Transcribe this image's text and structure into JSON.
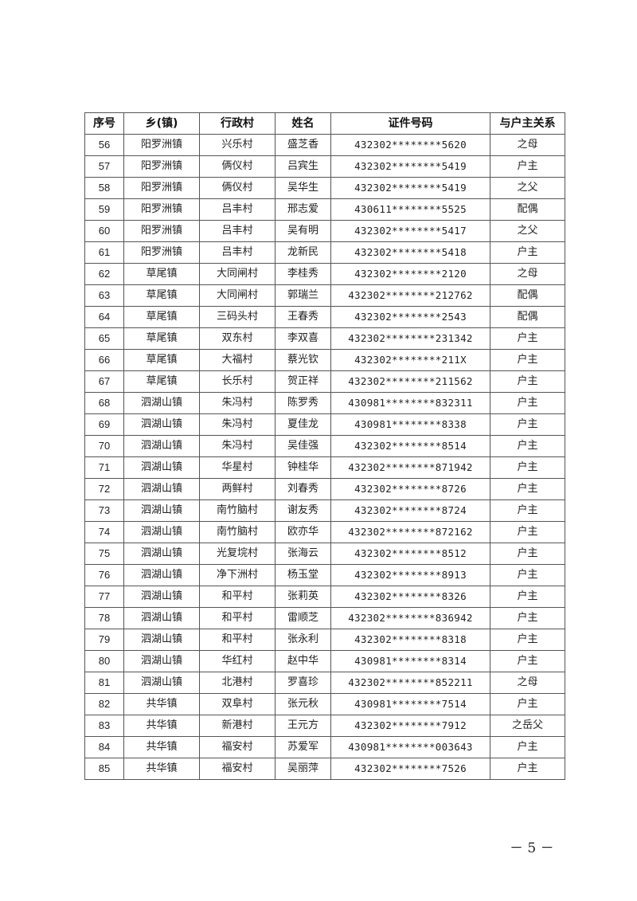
{
  "table": {
    "headers": [
      "序号",
      "乡(镇)",
      "行政村",
      "姓名",
      "证件号码",
      "与户主关系"
    ],
    "rows": [
      [
        "56",
        "阳罗洲镇",
        "兴乐村",
        "盛芝香",
        "432302********5620",
        "之母"
      ],
      [
        "57",
        "阳罗洲镇",
        "俩仪村",
        "吕宾生",
        "432302********5419",
        "户主"
      ],
      [
        "58",
        "阳罗洲镇",
        "俩仪村",
        "吴华生",
        "432302********5419",
        "之父"
      ],
      [
        "59",
        "阳罗洲镇",
        "吕丰村",
        "邢志爱",
        "430611********5525",
        "配偶"
      ],
      [
        "60",
        "阳罗洲镇",
        "吕丰村",
        "吴有明",
        "432302********5417",
        "之父"
      ],
      [
        "61",
        "阳罗洲镇",
        "吕丰村",
        "龙新民",
        "432302********5418",
        "户主"
      ],
      [
        "62",
        "草尾镇",
        "大同闸村",
        "李桂秀",
        "432302********2120",
        "之母"
      ],
      [
        "63",
        "草尾镇",
        "大同闸村",
        "郭瑞兰",
        "432302********212762",
        "配偶"
      ],
      [
        "64",
        "草尾镇",
        "三码头村",
        "王春秀",
        "432302********2543",
        "配偶"
      ],
      [
        "65",
        "草尾镇",
        "双东村",
        "李双喜",
        "432302********231342",
        "户主"
      ],
      [
        "66",
        "草尾镇",
        "大福村",
        "蔡光钦",
        "432302********211X",
        "户主"
      ],
      [
        "67",
        "草尾镇",
        "长乐村",
        "贺正祥",
        "432302********211562",
        "户主"
      ],
      [
        "68",
        "泗湖山镇",
        "朱冯村",
        "陈罗秀",
        "430981********832311",
        "户主"
      ],
      [
        "69",
        "泗湖山镇",
        "朱冯村",
        "夏佳龙",
        "430981********8338",
        "户主"
      ],
      [
        "70",
        "泗湖山镇",
        "朱冯村",
        "吴佳强",
        "432302********8514",
        "户主"
      ],
      [
        "71",
        "泗湖山镇",
        "华星村",
        "钟桂华",
        "432302********871942",
        "户主"
      ],
      [
        "72",
        "泗湖山镇",
        "两鲜村",
        "刘春秀",
        "432302********8726",
        "户主"
      ],
      [
        "73",
        "泗湖山镇",
        "南竹脑村",
        "谢友秀",
        "432302********8724",
        "户主"
      ],
      [
        "74",
        "泗湖山镇",
        "南竹脑村",
        "欧亦华",
        "432302********872162",
        "户主"
      ],
      [
        "75",
        "泗湖山镇",
        "光复垸村",
        "张海云",
        "432302********8512",
        "户主"
      ],
      [
        "76",
        "泗湖山镇",
        "净下洲村",
        "杨玉堂",
        "432302********8913",
        "户主"
      ],
      [
        "77",
        "泗湖山镇",
        "和平村",
        "张莉英",
        "432302********8326",
        "户主"
      ],
      [
        "78",
        "泗湖山镇",
        "和平村",
        "雷顺芝",
        "432302********836942",
        "户主"
      ],
      [
        "79",
        "泗湖山镇",
        "和平村",
        "张永利",
        "432302********8318",
        "户主"
      ],
      [
        "80",
        "泗湖山镇",
        "华红村",
        "赵中华",
        "430981********8314",
        "户主"
      ],
      [
        "81",
        "泗湖山镇",
        "北港村",
        "罗喜珍",
        "432302********852211",
        "之母"
      ],
      [
        "82",
        "共华镇",
        "双阜村",
        "张元秋",
        "430981********7514",
        "户主"
      ],
      [
        "83",
        "共华镇",
        "新港村",
        "王元方",
        "432302********7912",
        "之岳父"
      ],
      [
        "84",
        "共华镇",
        "福安村",
        "苏爱军",
        "430981********003643",
        "户主"
      ],
      [
        "85",
        "共华镇",
        "福安村",
        "吴丽萍",
        "432302********7526",
        "户主"
      ]
    ]
  },
  "footer": {
    "page_number": "－ 5 －"
  }
}
